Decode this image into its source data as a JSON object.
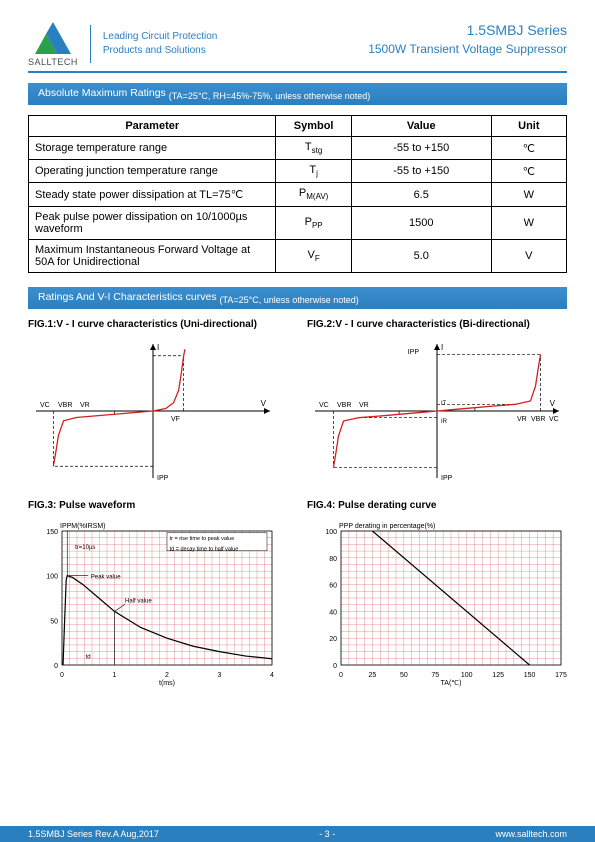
{
  "header": {
    "logo_text": "SALLTECH",
    "tagline_line1": "Leading Circuit Protection",
    "tagline_line2": "Products and Solutions",
    "series": "1.5SMBJ  Series",
    "subtitle": "1500W  Transient  Voltage  Suppressor"
  },
  "colors": {
    "brand_blue": "#2a7fbf",
    "logo_green": "#2aa04a",
    "logo_blue": "#2a7fbf",
    "curve_red": "#d02020",
    "grid_red": "#d84a4a",
    "axis_black": "#000000"
  },
  "section1": {
    "title": "Absolute Maximum Ratings",
    "subtitle": "(TA=25°C, RH=45%-75%, unless otherwise noted)"
  },
  "ratings_table": {
    "headers": [
      "Parameter",
      "Symbol",
      "Value",
      "Unit"
    ],
    "col_widths_pct": [
      46,
      14,
      26,
      14
    ],
    "rows": [
      {
        "param": "Storage temperature range",
        "symbol": "Tstg",
        "sym_sub": "stg",
        "sym_main": "T",
        "value": "-55 to +150",
        "unit": "℃"
      },
      {
        "param": "Operating junction temperature range",
        "symbol": "Tj",
        "sym_sub": "j",
        "sym_main": "T",
        "value": "-55 to +150",
        "unit": "℃"
      },
      {
        "param": "Steady state power dissipation at TL=75℃",
        "symbol": "PM(AV)",
        "sym_sub": "M(AV)",
        "sym_main": "P",
        "value": "6.5",
        "unit": "W"
      },
      {
        "param": "Peak pulse power dissipation on 10/1000µs waveform",
        "symbol": "PPP",
        "sym_sub": "PP",
        "sym_main": "P",
        "value": "1500",
        "unit": "W"
      },
      {
        "param": "Maximum Instantaneous Forward Voltage at 50A for Unidirectional",
        "symbol": "VF",
        "sym_sub": "F",
        "sym_main": "V",
        "value": "5.0",
        "unit": "V"
      }
    ]
  },
  "section2": {
    "title": "Ratings And V-I Characteristics curves",
    "subtitle": "(TA=25°C, unless otherwise noted)"
  },
  "fig1": {
    "title": "FIG.1:V - I curve characteristics (Uni-directional)",
    "labels": {
      "V": "V",
      "VF": "VF",
      "VC": "VC",
      "VBR": "VBR",
      "VR": "VR",
      "IPP": "IPP",
      "I": "I"
    },
    "axis_range": {
      "xmin": -90,
      "xmax": 90,
      "ymin": -80,
      "ymax": 80
    },
    "curve_points": [
      [
        -78,
        -68
      ],
      [
        -76,
        -50
      ],
      [
        -74,
        -30
      ],
      [
        -70,
        -12
      ],
      [
        -60,
        -8
      ],
      [
        -45,
        -6
      ],
      [
        -30,
        -4
      ],
      [
        -15,
        -2
      ],
      [
        0,
        0
      ],
      [
        10,
        3
      ],
      [
        16,
        10
      ],
      [
        20,
        25
      ],
      [
        22,
        45
      ],
      [
        24,
        68
      ],
      [
        25,
        76
      ]
    ],
    "dashed": [
      [
        -78,
        0,
        -78,
        -68
      ],
      [
        -30,
        0,
        -30,
        -4
      ],
      [
        24,
        0,
        24,
        68
      ],
      [
        0,
        -68,
        -78,
        -68
      ],
      [
        0,
        68,
        24,
        68
      ]
    ]
  },
  "fig2": {
    "title": "FIG.2:V - I curve characteristics (Bi-directional)",
    "labels": {
      "V": "V",
      "VC": "VC",
      "VBR": "VBR",
      "VR": "VR",
      "IPP": "IPP",
      "I": "I",
      "IT": "IT",
      "IR": "IR"
    },
    "axis_range": {
      "xmin": -95,
      "xmax": 95,
      "ymin": -78,
      "ymax": 78
    },
    "curve_points": [
      [
        -82,
        -68
      ],
      [
        -80,
        -50
      ],
      [
        -78,
        -30
      ],
      [
        -74,
        -12
      ],
      [
        -62,
        -8
      ],
      [
        -45,
        -6
      ],
      [
        -30,
        -4
      ],
      [
        -15,
        -2
      ],
      [
        0,
        0
      ],
      [
        15,
        2
      ],
      [
        30,
        4
      ],
      [
        45,
        6
      ],
      [
        62,
        8
      ],
      [
        74,
        12
      ],
      [
        78,
        30
      ],
      [
        80,
        50
      ],
      [
        82,
        68
      ]
    ],
    "dashed": [
      [
        -82,
        0,
        -82,
        -68
      ],
      [
        -30,
        0,
        -30,
        -4
      ],
      [
        30,
        0,
        30,
        4
      ],
      [
        82,
        0,
        82,
        68
      ],
      [
        0,
        -68,
        -82,
        -68
      ],
      [
        0,
        68,
        82,
        68
      ],
      [
        0,
        8,
        62,
        8
      ],
      [
        0,
        -8,
        -62,
        -8
      ]
    ]
  },
  "fig3": {
    "title": "FIG.3: Pulse waveform",
    "ylabel": "IPPM(%IRSM)",
    "xlabel": "t(ms)",
    "xlim": [
      0,
      4.0
    ],
    "ylim": [
      0,
      150
    ],
    "xticks": [
      0,
      1.0,
      2.0,
      3.0,
      4.0
    ],
    "yticks": [
      0,
      50,
      100,
      150
    ],
    "grid_color": "#d84a4a",
    "curve_color": "#000000",
    "background": "#ffffff",
    "curve": [
      [
        0.02,
        0
      ],
      [
        0.05,
        50
      ],
      [
        0.08,
        95
      ],
      [
        0.1,
        100
      ],
      [
        0.2,
        98
      ],
      [
        0.4,
        90
      ],
      [
        0.7,
        75
      ],
      [
        1.0,
        60
      ],
      [
        1.5,
        42
      ],
      [
        2.0,
        30
      ],
      [
        2.5,
        21
      ],
      [
        3.0,
        15
      ],
      [
        3.5,
        10
      ],
      [
        4.0,
        7
      ]
    ],
    "annotations": {
      "peak": "Peak value",
      "half": "Half value",
      "tr": "tr=10µs",
      "legend1": "tr = rise time to peak value",
      "legend2": "td = decay time to half value",
      "td": "td"
    }
  },
  "fig4": {
    "title": "FIG.4: Pulse derating curve",
    "ylabel": "PPP derating in percentage(%)",
    "xlabel": "TA(℃)",
    "xlim": [
      0,
      175
    ],
    "ylim": [
      0,
      100
    ],
    "xticks": [
      0,
      25,
      50,
      75,
      100,
      125,
      150,
      175
    ],
    "yticks": [
      0,
      20,
      40,
      60,
      80,
      100
    ],
    "grid_color": "#d84a4a",
    "curve_color": "#000000",
    "background": "#ffffff",
    "curve": [
      [
        25,
        100
      ],
      [
        150,
        0
      ]
    ]
  },
  "footer": {
    "left": "1.5SMBJ Series Rev.A Aug,2017",
    "mid": "- 3 -",
    "right": "www.salltech.com"
  }
}
